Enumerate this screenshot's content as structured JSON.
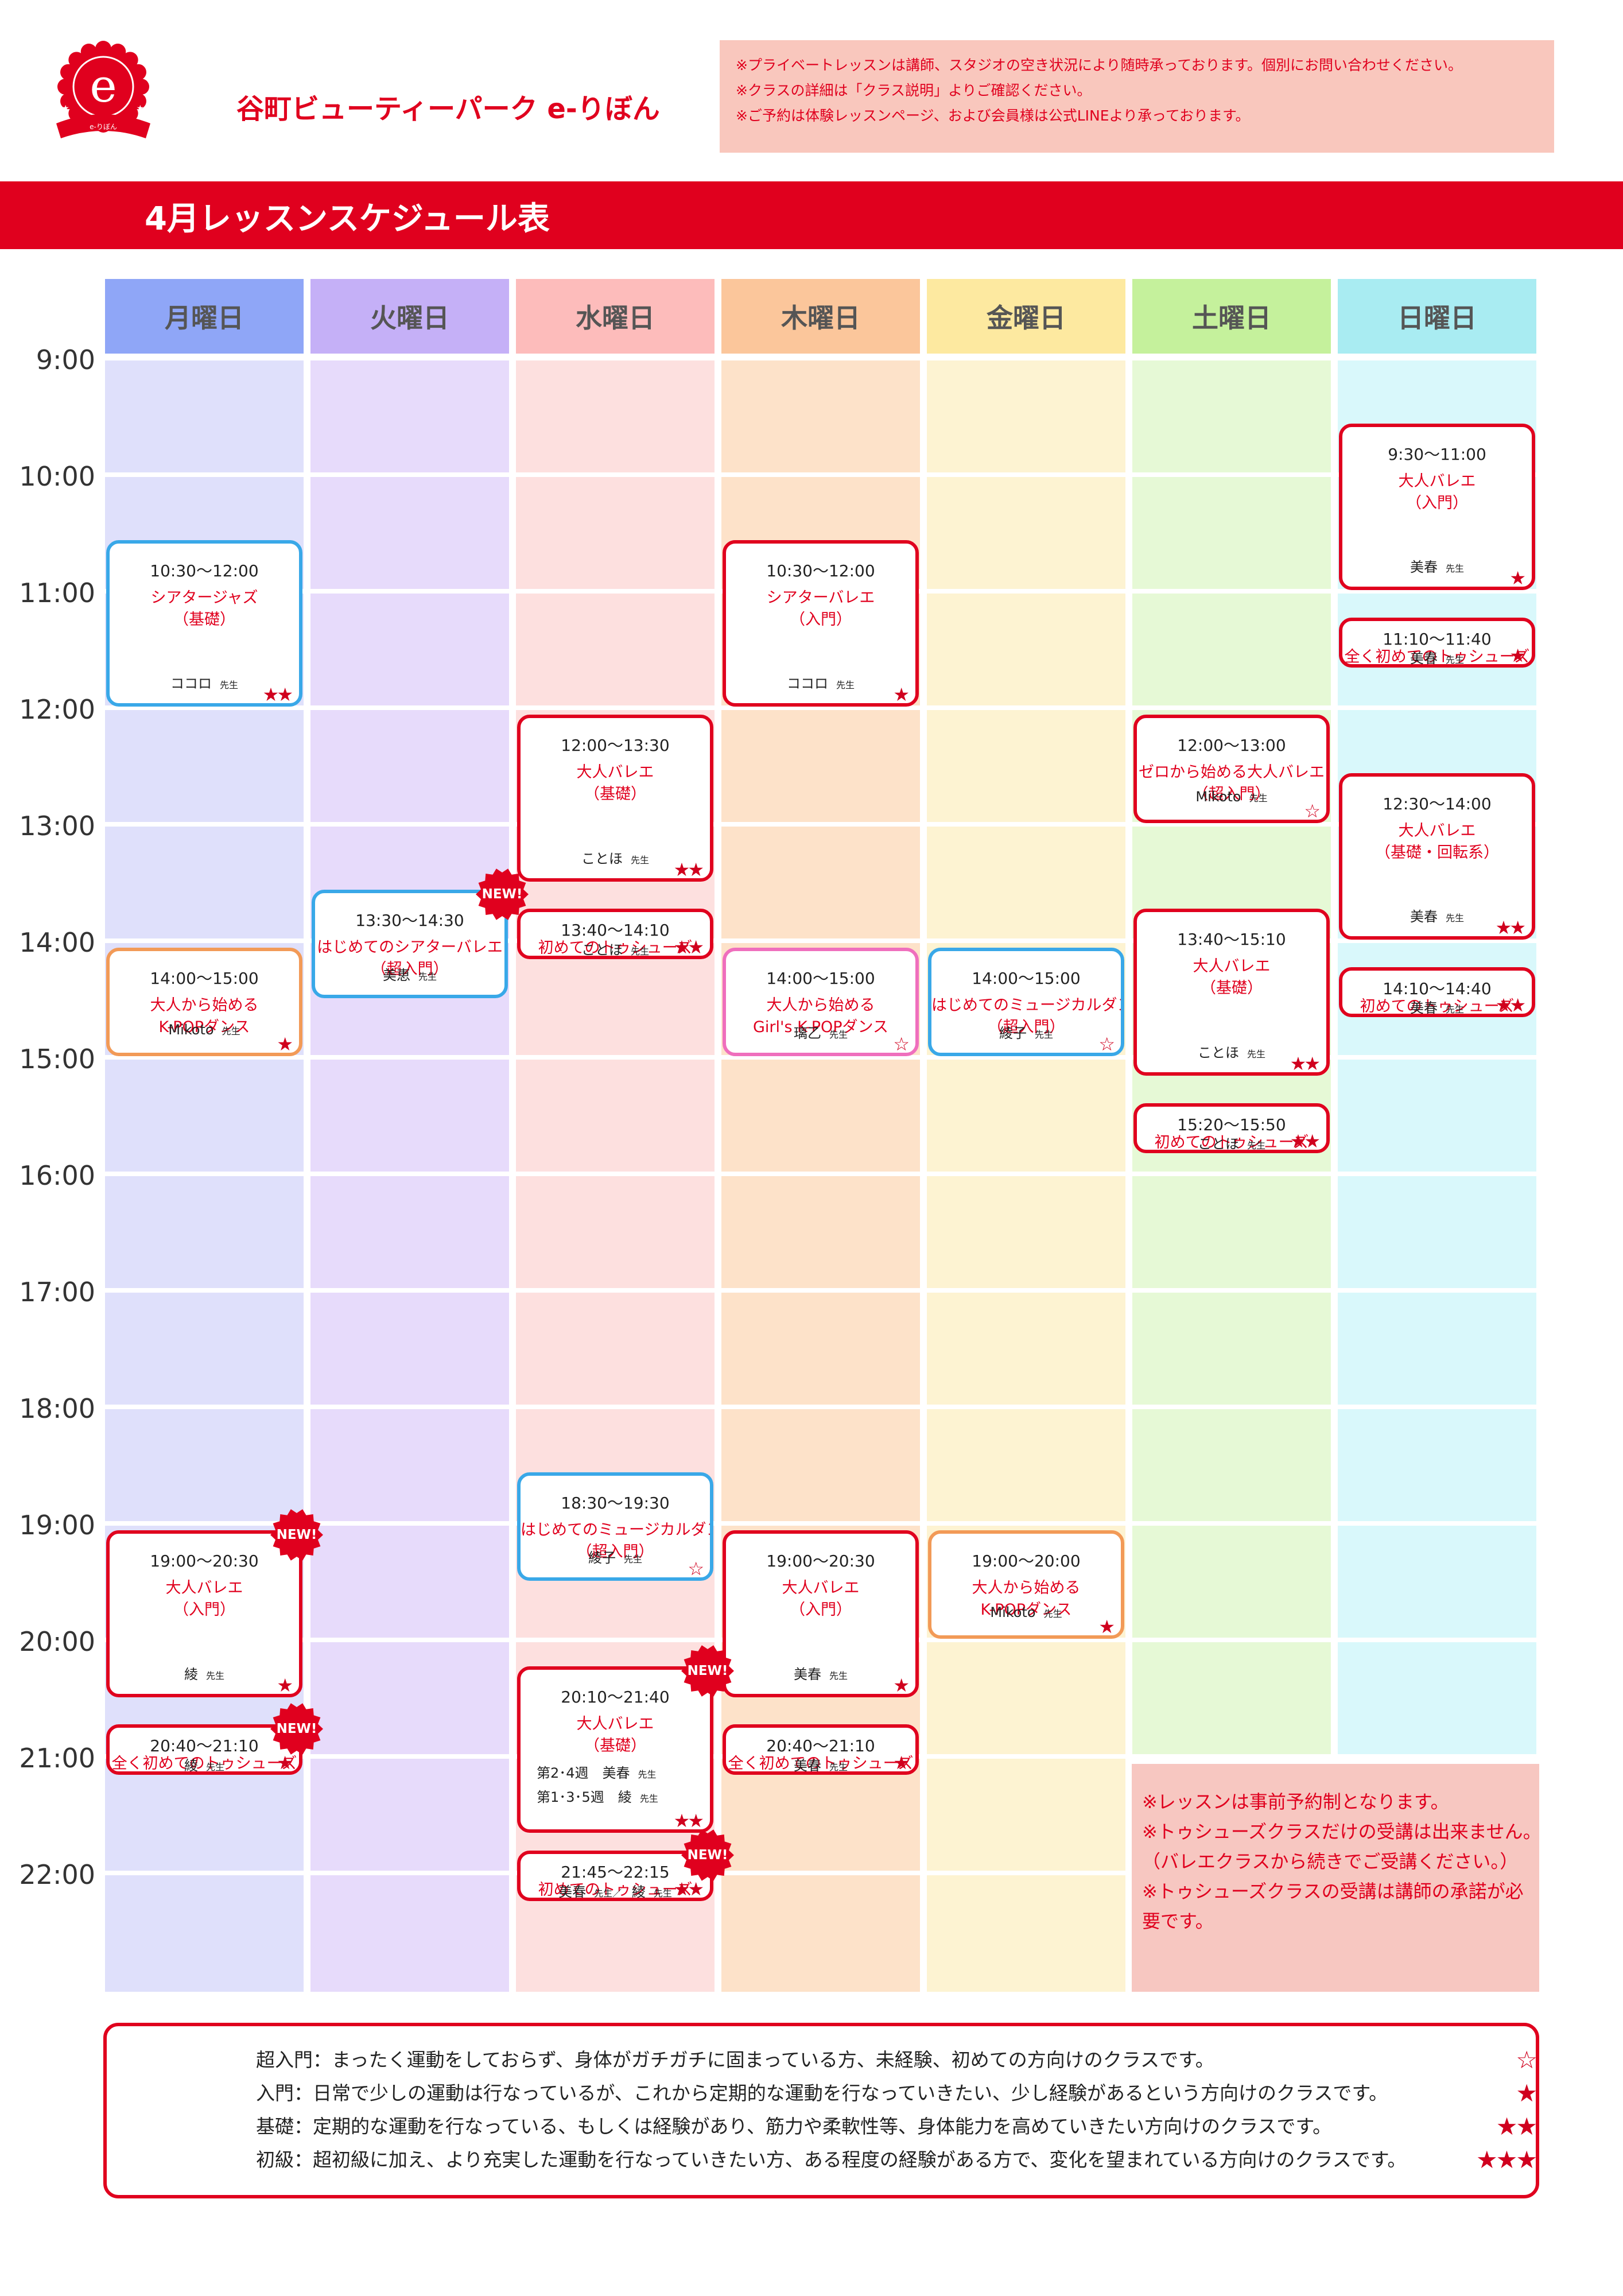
{
  "brand": {
    "title": "谷町ビューティーパーク e-りぼん",
    "logo_letter": "e",
    "logo_ribbon_text": "e-りぼん"
  },
  "notice_top": [
    "※プライベートレッスンは講師、スタジオの空き状況により随時承っております。個別にお問い合わせください。",
    "※クラスの詳細は「クラス説明」よりご確認ください。",
    "※ご予約は体験レッスンページ、および会員様は公式LINEより承っております。"
  ],
  "schedule_title": "4月レッスンスケジュール表",
  "days": [
    {
      "label": "月曜日",
      "header_color": "#8fa6f7",
      "cell_color": "#dfe0fb"
    },
    {
      "label": "火曜日",
      "header_color": "#c5b0f7",
      "cell_color": "#e7dbfb"
    },
    {
      "label": "水曜日",
      "header_color": "#fdbcbb",
      "cell_color": "#fde0df"
    },
    {
      "label": "木曜日",
      "header_color": "#fbc69b",
      "cell_color": "#fde2c9"
    },
    {
      "label": "金曜日",
      "header_color": "#fde9a0",
      "cell_color": "#fdf3d2"
    },
    {
      "label": "土曜日",
      "header_color": "#c5f19c",
      "cell_color": "#e6f9d6"
    },
    {
      "label": "日曜日",
      "header_color": "#a9ecf2",
      "cell_color": "#d9f8fb"
    }
  ],
  "hours": [
    "9:00",
    "10:00",
    "11:00",
    "12:00",
    "13:00",
    "14:00",
    "15:00",
    "16:00",
    "17:00",
    "18:00",
    "19:00",
    "20:00",
    "21:00",
    "22:00"
  ],
  "lessons": [
    {
      "day": 0,
      "start": 10.5,
      "end": 12.0,
      "style": "blue",
      "time": "10:30〜12:00",
      "name": [
        "シアタージャズ",
        "（基礎）"
      ],
      "teacher": "ココロ",
      "suffix": "先生",
      "stars": "★★",
      "new": false
    },
    {
      "day": 0,
      "start": 14.0,
      "end": 15.0,
      "style": "orange",
      "time": "14:00〜15:00",
      "name": [
        "大人から始める",
        "K-POPダンス"
      ],
      "teacher": "Mikoto",
      "suffix": "先生",
      "stars": "★",
      "new": false
    },
    {
      "day": 0,
      "start": 19.0,
      "end": 20.5,
      "style": "red",
      "time": "19:00〜20:30",
      "name": [
        "大人バレエ",
        "（入門）"
      ],
      "teacher": "綾",
      "suffix": "先生",
      "stars": "★",
      "new": true
    },
    {
      "day": 0,
      "start": 20.6667,
      "end": 21.1667,
      "style": "red",
      "time": "20:40〜21:10",
      "name": [
        "全く初めてのトゥシューズ"
      ],
      "teacher": "綾",
      "suffix": "先生",
      "stars": "★",
      "new": true
    },
    {
      "day": 1,
      "start": 13.5,
      "end": 14.5,
      "style": "blue",
      "time": "13:30〜14:30",
      "name": [
        "はじめてのシアターバレエ",
        "（超入門）"
      ],
      "teacher": "美恵",
      "suffix": "先生",
      "stars": "",
      "new": true
    },
    {
      "day": 2,
      "start": 12.0,
      "end": 13.5,
      "style": "red",
      "time": "12:00〜13:30",
      "name": [
        "大人バレエ",
        "（基礎）"
      ],
      "teacher": "ことほ",
      "suffix": "先生",
      "stars": "★★",
      "new": false
    },
    {
      "day": 2,
      "start": 13.6667,
      "end": 14.1667,
      "style": "red",
      "time": "13:40〜14:10",
      "name": [
        "初めてのトゥシューズ"
      ],
      "teacher": "ことほ",
      "suffix": "先生",
      "stars": "★★",
      "new": false
    },
    {
      "day": 2,
      "start": 18.5,
      "end": 19.5,
      "style": "blue",
      "time": "18:30〜19:30",
      "name": [
        "はじめてのミュージカルダンス",
        "（超入門）"
      ],
      "teacher": "綾子",
      "suffix": "先生",
      "stars": "☆",
      "new": false
    },
    {
      "day": 2,
      "start": 20.1667,
      "end": 21.6667,
      "style": "red",
      "time": "20:10〜21:40",
      "name": [
        "大人バレエ",
        "（基礎）"
      ],
      "teacher_lines": [
        {
          "text": "第2･4週　美春",
          "suffix": "先生"
        },
        {
          "text": "第1･3･5週　綾",
          "suffix": "先生"
        }
      ],
      "stars": "★★",
      "new": true
    },
    {
      "day": 2,
      "start": 21.75,
      "end": 22.25,
      "style": "red",
      "time": "21:45〜22:15",
      "name": [
        "初めてのトゥシューズ"
      ],
      "teacher": "美春",
      "suffix": "先生／",
      "teacher2": "綾",
      "suffix2": "先生",
      "stars": "★★",
      "new": true
    },
    {
      "day": 3,
      "start": 10.5,
      "end": 12.0,
      "style": "red",
      "time": "10:30〜12:00",
      "name": [
        "シアターバレエ",
        "（入門）"
      ],
      "teacher": "ココロ",
      "suffix": "先生",
      "stars": "★",
      "new": false
    },
    {
      "day": 3,
      "start": 14.0,
      "end": 15.0,
      "style": "pink",
      "time": "14:00〜15:00",
      "name": [
        "大人から始める",
        "Girl's K-POPダンス"
      ],
      "teacher": "璃乙",
      "suffix": "先生",
      "stars": "☆",
      "new": false
    },
    {
      "day": 3,
      "start": 19.0,
      "end": 20.5,
      "style": "red",
      "time": "19:00〜20:30",
      "name": [
        "大人バレエ",
        "（入門）"
      ],
      "teacher": "美春",
      "suffix": "先生",
      "stars": "★",
      "new": false
    },
    {
      "day": 3,
      "start": 20.6667,
      "end": 21.1667,
      "style": "red",
      "time": "20:40〜21:10",
      "name": [
        "全く初めてのトゥシューズ"
      ],
      "teacher": "美春",
      "suffix": "先生",
      "stars": "★",
      "new": false
    },
    {
      "day": 4,
      "start": 14.0,
      "end": 15.0,
      "style": "blue",
      "time": "14:00〜15:00",
      "name": [
        "はじめてのミュージカルダンス",
        "（超入門）"
      ],
      "teacher": "綾子",
      "suffix": "先生",
      "stars": "☆",
      "new": false
    },
    {
      "day": 4,
      "start": 19.0,
      "end": 20.0,
      "style": "orange",
      "time": "19:00〜20:00",
      "name": [
        "大人から始める",
        "K-POPダンス"
      ],
      "teacher": "Mikoto",
      "suffix": "先生",
      "stars": "★",
      "new": false
    },
    {
      "day": 5,
      "start": 12.0,
      "end": 13.0,
      "style": "red",
      "time": "12:00〜13:00",
      "name": [
        "ゼロから始める大人バレエ",
        "（超入門）"
      ],
      "teacher": "Mikoto",
      "suffix": "先生",
      "stars": "☆",
      "new": false
    },
    {
      "day": 5,
      "start": 13.6667,
      "end": 15.1667,
      "style": "red",
      "time": "13:40〜15:10",
      "name": [
        "大人バレエ",
        "（基礎）"
      ],
      "teacher": "ことほ",
      "suffix": "先生",
      "stars": "★★",
      "new": false
    },
    {
      "day": 5,
      "start": 15.3333,
      "end": 15.8333,
      "style": "red",
      "time": "15:20〜15:50",
      "name": [
        "初めてのトゥシューズ"
      ],
      "teacher": "ことほ",
      "suffix": "先生",
      "stars": "★★",
      "new": false
    },
    {
      "day": 6,
      "start": 9.5,
      "end": 11.0,
      "style": "red",
      "time": "9:30〜11:00",
      "name": [
        "大人バレエ",
        "（入門）"
      ],
      "teacher": "美春",
      "suffix": "先生",
      "stars": "★",
      "new": false
    },
    {
      "day": 6,
      "start": 11.1667,
      "end": 11.6667,
      "style": "red",
      "time": "11:10〜11:40",
      "name": [
        "全く初めてのトゥシューズ"
      ],
      "teacher": "美春",
      "suffix": "先生",
      "stars": "★",
      "new": false
    },
    {
      "day": 6,
      "start": 12.5,
      "end": 14.0,
      "style": "red",
      "time": "12:30〜14:00",
      "name": [
        "大人バレエ",
        "（基礎・回転系）"
      ],
      "teacher": "美春",
      "suffix": "先生",
      "stars": "★★",
      "new": false
    },
    {
      "day": 6,
      "start": 14.1667,
      "end": 14.6667,
      "style": "red",
      "time": "14:10〜14:40",
      "name": [
        "初めてのトゥシューズ"
      ],
      "teacher": "美春",
      "suffix": "先生",
      "stars": "★★",
      "new": false
    }
  ],
  "new_badge_text": "NEW!",
  "notice_bottom": [
    "※レッスンは事前予約制となります。",
    "※トゥシューズクラスだけの受講は出来ません。",
    "（バレエクラスから続きでご受講ください。）",
    "※トゥシューズクラスの受講は講師の承諾が必",
    "要です。"
  ],
  "legend": [
    {
      "stars": "☆",
      "text": "超入門：まったく運動をしておらず、身体がガチガチに固まっている方、未経験、初めての方向けのクラスです。"
    },
    {
      "stars": "★",
      "text": "入門：日常で少しの運動は行なっているが、これから定期的な運動を行なっていきたい、少し経験があるという方向けのクラスです。"
    },
    {
      "stars": "★★",
      "text": "基礎：定期的な運動を行なっている、もしくは経験があり、筋力や柔軟性等、身体能力を高めていきたい方向けのクラスです。"
    },
    {
      "stars": "★★★",
      "text": "初級：超初級に加え、より充実した運動を行なっていきたい方、ある程度の経験がある方で、変化を望まれている方向けのクラスです。"
    }
  ],
  "colors": {
    "accent": "#e0001e",
    "blue_border": "#39a8e8",
    "orange_border": "#f29a57",
    "pink_border": "#ef6fbd"
  }
}
